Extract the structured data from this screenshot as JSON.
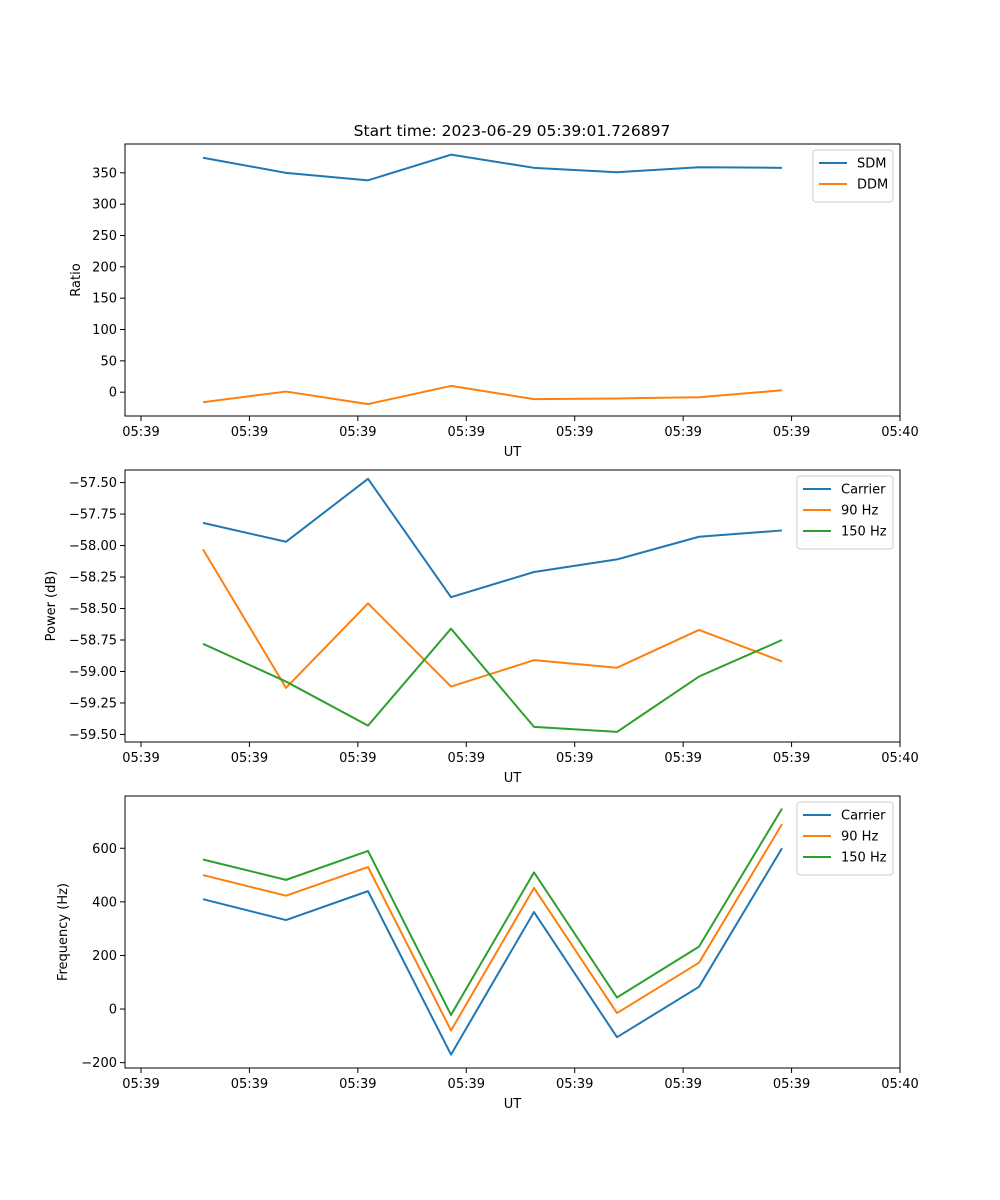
{
  "title": "Start time: 2023-06-29 05:39:01.726897",
  "chart_data": [
    {
      "type": "line",
      "xlabel": "UT",
      "ylabel": "Ratio",
      "x_ticks": [
        "05:39",
        "05:39",
        "05:39",
        "05:39",
        "05:39",
        "05:39",
        "05:39",
        "05:40"
      ],
      "y_ticks": [
        "0",
        "50",
        "100",
        "150",
        "200",
        "250",
        "300",
        "350"
      ],
      "y_tick_values": [
        0,
        50,
        100,
        150,
        200,
        250,
        300,
        350
      ],
      "ylim": [
        -38,
        396
      ],
      "legend_position": "top-right",
      "series": [
        {
          "name": "SDM",
          "color": "#1f77b4",
          "values": [
            374,
            350,
            338,
            379,
            358,
            351,
            359,
            358
          ]
        },
        {
          "name": "DDM",
          "color": "#ff7f0e",
          "values": [
            -16,
            1,
            -19,
            10,
            -11,
            -10,
            -8,
            3
          ]
        }
      ]
    },
    {
      "type": "line",
      "xlabel": "UT",
      "ylabel": "Power (dB)",
      "x_ticks": [
        "05:39",
        "05:39",
        "05:39",
        "05:39",
        "05:39",
        "05:39",
        "05:39",
        "05:40"
      ],
      "y_ticks": [
        "−57.50",
        "−57.75",
        "−58.00",
        "−58.25",
        "−58.50",
        "−58.75",
        "−59.00",
        "−59.25",
        "−59.50"
      ],
      "y_tick_values": [
        -57.5,
        -57.75,
        -58.0,
        -58.25,
        -58.5,
        -58.75,
        -59.0,
        -59.25,
        -59.5
      ],
      "ylim": [
        -59.56,
        -57.4
      ],
      "legend_position": "top-right",
      "series": [
        {
          "name": "Carrier",
          "color": "#1f77b4",
          "values": [
            -57.82,
            -57.97,
            -57.47,
            -58.41,
            -58.21,
            -58.11,
            -57.93,
            -57.88
          ]
        },
        {
          "name": "90 Hz",
          "color": "#ff7f0e",
          "values": [
            -58.03,
            -59.13,
            -58.46,
            -59.12,
            -58.91,
            -58.97,
            -58.67,
            -58.92
          ]
        },
        {
          "name": "150 Hz",
          "color": "#2ca02c",
          "values": [
            -58.78,
            -59.08,
            -59.43,
            -58.66,
            -59.44,
            -59.48,
            -59.04,
            -58.75
          ]
        }
      ]
    },
    {
      "type": "line",
      "xlabel": "UT",
      "ylabel": "Frequency (Hz)",
      "x_ticks": [
        "05:39",
        "05:39",
        "05:39",
        "05:39",
        "05:39",
        "05:39",
        "05:39",
        "05:40"
      ],
      "y_ticks": [
        "−200",
        "0",
        "200",
        "400",
        "600"
      ],
      "y_tick_values": [
        -200,
        0,
        200,
        400,
        600
      ],
      "ylim": [
        -220,
        795
      ],
      "legend_position": "top-right",
      "series": [
        {
          "name": "Carrier",
          "color": "#1f77b4",
          "values": [
            410,
            332,
            440,
            -170,
            362,
            -105,
            83,
            600
          ]
        },
        {
          "name": "90 Hz",
          "color": "#ff7f0e",
          "values": [
            500,
            423,
            530,
            -80,
            452,
            -15,
            173,
            690
          ]
        },
        {
          "name": "150 Hz",
          "color": "#2ca02c",
          "values": [
            558,
            482,
            590,
            -22,
            510,
            43,
            233,
            748
          ]
        }
      ]
    }
  ]
}
